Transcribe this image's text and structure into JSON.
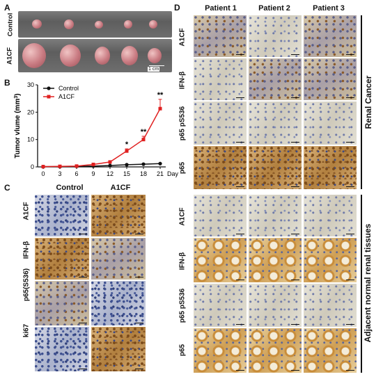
{
  "panel_a": {
    "letter": "A",
    "rows": [
      "Control",
      "A1CF"
    ],
    "scale": "1 cm"
  },
  "panel_b": {
    "letter": "B"
  },
  "chart_data": {
    "type": "line",
    "x": [
      0,
      3,
      6,
      9,
      12,
      15,
      18,
      21
    ],
    "xlabel": "Day",
    "ylabel": "Tumor vlume (mm³)",
    "ylabel_main": "Tumor vlume",
    "ylabel_unit": "(mm",
    "ylabel_sup": "3",
    "ylabel_close": ")",
    "ylim": [
      0,
      30
    ],
    "yticks": [
      0,
      10,
      20,
      30
    ],
    "legend_position": "top-left",
    "series": [
      {
        "name": "Control",
        "color": "#111111",
        "marker": "circle",
        "values": [
          0.1,
          0.1,
          0.2,
          0.3,
          0.5,
          0.8,
          1.0,
          1.2
        ],
        "errors": [
          0,
          0,
          0,
          0.1,
          0.1,
          0.2,
          0.2,
          0.2
        ]
      },
      {
        "name": "A1CF",
        "color": "#e02020",
        "marker": "square",
        "values": [
          0.1,
          0.2,
          0.3,
          0.9,
          1.8,
          5.8,
          10.0,
          21.3
        ],
        "errors": [
          0,
          0,
          0.1,
          0.3,
          0.4,
          0.8,
          1.2,
          3.4
        ]
      }
    ],
    "significance": [
      {
        "x": 15,
        "label": "*"
      },
      {
        "x": 18,
        "label": "**"
      },
      {
        "x": 21,
        "label": "**"
      }
    ]
  },
  "panel_c": {
    "letter": "C",
    "columns": [
      "Control",
      "A1CF"
    ],
    "rows": [
      "A1CF",
      "IFN-β",
      "p65(S536)",
      "ki67"
    ]
  },
  "panel_d": {
    "letter": "D",
    "columns": [
      "Patient 1",
      "Patient 2",
      "Patient 3"
    ],
    "rows": [
      "A1CF",
      "IFN-β",
      "p65 pS536",
      "p65",
      "A1CF",
      "IFN-β",
      "p65 pS536",
      "p65"
    ],
    "group_labels": [
      "Renal Cancer",
      "Adjacent normal renal tissues"
    ]
  }
}
